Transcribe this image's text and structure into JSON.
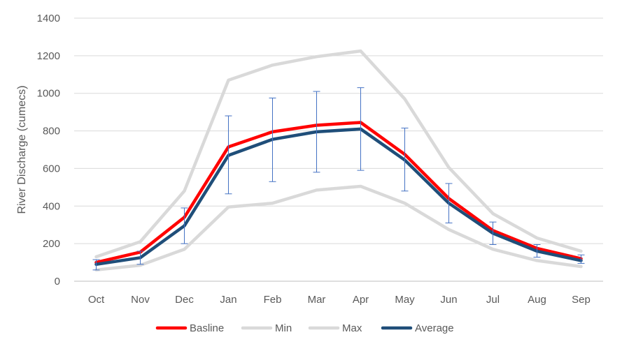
{
  "chart_data": {
    "type": "line",
    "title": "",
    "xlabel": "",
    "ylabel": "River Discharge (cumecs)",
    "ylim": [
      0,
      1400
    ],
    "yticks": [
      0,
      200,
      400,
      600,
      800,
      1000,
      1200,
      1400
    ],
    "grid": true,
    "legend_position": "bottom",
    "categories": [
      "Oct",
      "Nov",
      "Dec",
      "Jan",
      "Feb",
      "Mar",
      "Apr",
      "May",
      "Jun",
      "Jul",
      "Aug",
      "Sep"
    ],
    "series": [
      {
        "name": "Basline",
        "color": "#ff0000",
        "values": [
          100,
          155,
          340,
          715,
          795,
          830,
          845,
          675,
          440,
          270,
          175,
          120
        ]
      },
      {
        "name": "Min",
        "color": "#d9d9d9",
        "values": [
          60,
          85,
          170,
          395,
          415,
          485,
          505,
          415,
          275,
          170,
          110,
          78
        ]
      },
      {
        "name": "Max",
        "color": "#d9d9d9",
        "values": [
          130,
          210,
          480,
          1070,
          1150,
          1195,
          1225,
          970,
          605,
          360,
          230,
          160
        ]
      },
      {
        "name": "Average",
        "color": "#1f4e79",
        "values": [
          90,
          125,
          295,
          670,
          755,
          795,
          810,
          645,
          415,
          255,
          160,
          110
        ]
      }
    ],
    "error_bars": {
      "series": "Average",
      "color": "#4472c4",
      "lower": [
        60,
        90,
        200,
        465,
        530,
        580,
        590,
        480,
        310,
        195,
        128,
        95
      ],
      "upper": [
        115,
        160,
        390,
        880,
        975,
        1010,
        1030,
        815,
        520,
        315,
        195,
        140
      ]
    }
  }
}
